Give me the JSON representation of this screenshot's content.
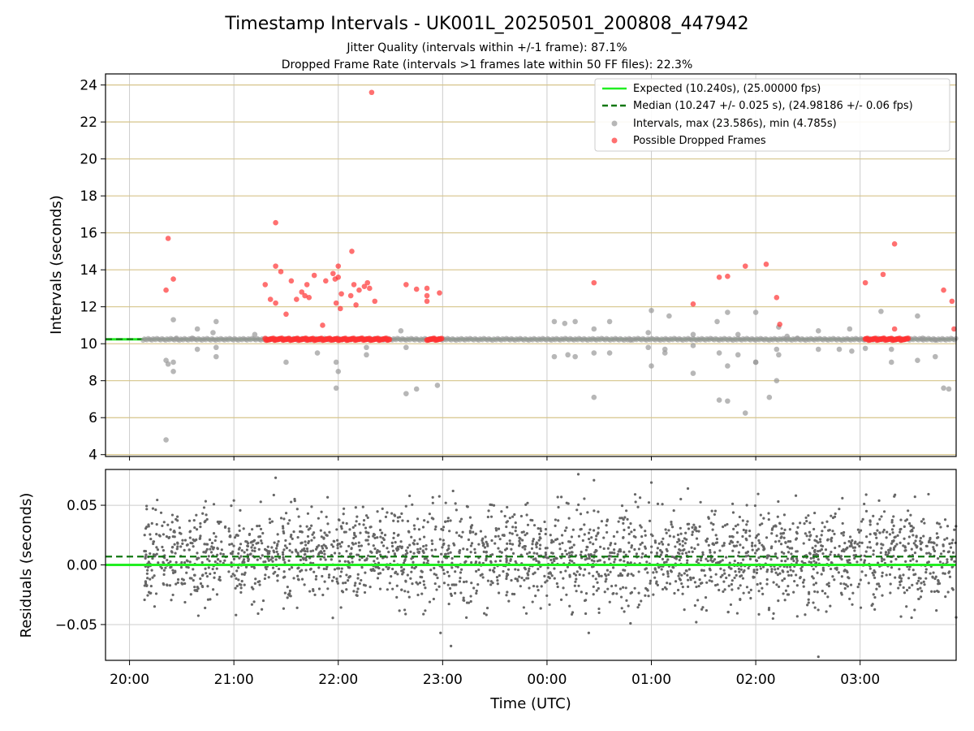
{
  "title": "Timestamp Intervals - UK001L_20250501_200808_447942",
  "subtitle_1": "Jitter Quality (intervals within +/-1 frame): 87.1%",
  "subtitle_2": "Dropped Frame Rate (intervals >1 frames late within 50 FF files): 22.3%",
  "colors": {
    "expected": "#22ee22",
    "median": "#117711",
    "intervals": "#999999",
    "dropped": "#ff3333",
    "residuals": "#666666",
    "hgrid_top": "#d6c48a",
    "grid": "#cccccc"
  },
  "chart_data": [
    {
      "type": "scatter",
      "panel": "intervals",
      "ylabel": "Intervals (seconds)",
      "ylim": [
        3.9,
        24.6
      ],
      "xlim_hours": [
        19.77,
        27.92
      ],
      "yticks": [
        4,
        6,
        8,
        10,
        12,
        14,
        16,
        18,
        20,
        22,
        24
      ],
      "grid": "horizontal (gold) and vertical",
      "legend_position": "top-right",
      "legend": [
        {
          "label": "Expected (10.240s), (25.00000 fps)",
          "style": "solid-line",
          "color": "#22ee22"
        },
        {
          "label": "Median (10.247 +/- 0.025 s), (24.98186 +/- 0.06 fps)",
          "style": "dashed-line",
          "color": "#117711"
        },
        {
          "label": "Intervals, max (23.586s), min (4.785s)",
          "style": "dot",
          "color": "#999999"
        },
        {
          "label": "Possible Dropped Frames",
          "style": "dot",
          "color": "#ff3333"
        }
      ],
      "expected_value": 10.24,
      "median_value": 10.247,
      "dense_band": {
        "x_start": 20.13,
        "x_end": 27.92,
        "y": 10.24
      },
      "dropped_band_segments": [
        [
          21.3,
          22.5
        ],
        [
          22.85,
          23.0
        ],
        [
          27.05,
          27.47
        ]
      ],
      "series": [
        {
          "name": "Intervals",
          "points": [
            [
              20.35,
              4.8
            ],
            [
              20.35,
              9.1
            ],
            [
              20.37,
              8.9
            ],
            [
              20.42,
              9.0
            ],
            [
              20.42,
              8.5
            ],
            [
              20.42,
              11.3
            ],
            [
              20.45,
              10.3
            ],
            [
              20.6,
              10.3
            ],
            [
              20.65,
              10.8
            ],
            [
              20.65,
              9.7
            ],
            [
              20.8,
              10.6
            ],
            [
              20.83,
              11.2
            ],
            [
              20.83,
              9.8
            ],
            [
              20.83,
              9.3
            ],
            [
              21.2,
              10.5
            ],
            [
              21.5,
              9.0
            ],
            [
              21.8,
              9.5
            ],
            [
              21.98,
              9.0
            ],
            [
              21.98,
              7.6
            ],
            [
              22.0,
              8.5
            ],
            [
              22.27,
              9.4
            ],
            [
              22.27,
              9.8
            ],
            [
              22.6,
              10.7
            ],
            [
              22.65,
              9.8
            ],
            [
              22.65,
              7.3
            ],
            [
              22.75,
              7.55
            ],
            [
              22.95,
              7.75
            ],
            [
              24.07,
              11.2
            ],
            [
              24.07,
              9.3
            ],
            [
              24.17,
              11.1
            ],
            [
              24.2,
              9.4
            ],
            [
              24.27,
              11.2
            ],
            [
              24.27,
              9.3
            ],
            [
              24.45,
              10.8
            ],
            [
              24.45,
              9.5
            ],
            [
              24.45,
              7.1
            ],
            [
              24.6,
              11.2
            ],
            [
              24.6,
              9.5
            ],
            [
              24.8,
              10.2
            ],
            [
              24.97,
              9.8
            ],
            [
              24.97,
              10.6
            ],
            [
              25.0,
              11.8
            ],
            [
              25.0,
              8.8
            ],
            [
              25.13,
              9.5
            ],
            [
              25.13,
              9.7
            ],
            [
              25.17,
              11.5
            ],
            [
              25.4,
              10.5
            ],
            [
              25.4,
              9.9
            ],
            [
              25.4,
              8.4
            ],
            [
              25.63,
              11.2
            ],
            [
              25.65,
              9.5
            ],
            [
              25.65,
              6.95
            ],
            [
              25.73,
              11.7
            ],
            [
              25.73,
              8.8
            ],
            [
              25.73,
              6.9
            ],
            [
              25.83,
              10.5
            ],
            [
              25.83,
              9.4
            ],
            [
              26.0,
              11.7
            ],
            [
              26.0,
              9.0
            ],
            [
              26.0,
              9.0
            ],
            [
              26.13,
              7.1
            ],
            [
              26.2,
              8.0
            ],
            [
              26.2,
              9.7
            ],
            [
              26.22,
              9.4
            ],
            [
              26.22,
              10.9
            ],
            [
              26.3,
              10.4
            ],
            [
              26.4,
              10.3
            ],
            [
              26.6,
              10.7
            ],
            [
              26.6,
              9.7
            ],
            [
              26.8,
              9.7
            ],
            [
              26.9,
              10.8
            ],
            [
              26.92,
              9.6
            ],
            [
              27.05,
              9.75
            ],
            [
              27.2,
              11.75
            ],
            [
              27.3,
              9.0
            ],
            [
              27.3,
              9.7
            ],
            [
              27.55,
              11.5
            ],
            [
              27.55,
              9.1
            ],
            [
              27.6,
              10.3
            ],
            [
              27.72,
              9.3
            ],
            [
              27.72,
              10.2
            ],
            [
              27.8,
              7.6
            ],
            [
              27.85,
              7.55
            ],
            [
              25.9,
              6.25
            ]
          ]
        },
        {
          "name": "Possible Dropped Frames",
          "points": [
            [
              20.35,
              12.9
            ],
            [
              20.37,
              15.7
            ],
            [
              20.42,
              13.5
            ],
            [
              21.3,
              13.2
            ],
            [
              21.35,
              12.4
            ],
            [
              21.4,
              14.2
            ],
            [
              21.4,
              12.2
            ],
            [
              21.4,
              16.55
            ],
            [
              21.45,
              13.9
            ],
            [
              21.5,
              11.6
            ],
            [
              21.55,
              13.4
            ],
            [
              21.6,
              12.4
            ],
            [
              21.65,
              12.8
            ],
            [
              21.68,
              12.6
            ],
            [
              21.7,
              13.2
            ],
            [
              21.72,
              12.5
            ],
            [
              21.77,
              13.7
            ],
            [
              21.85,
              11.0
            ],
            [
              21.88,
              13.4
            ],
            [
              21.95,
              13.8
            ],
            [
              21.97,
              13.5
            ],
            [
              21.98,
              12.2
            ],
            [
              22.0,
              14.2
            ],
            [
              22.0,
              13.6
            ],
            [
              22.02,
              11.9
            ],
            [
              22.03,
              12.7
            ],
            [
              22.12,
              12.6
            ],
            [
              22.13,
              15.0
            ],
            [
              22.15,
              13.2
            ],
            [
              22.17,
              12.1
            ],
            [
              22.2,
              12.9
            ],
            [
              22.25,
              13.1
            ],
            [
              22.28,
              13.3
            ],
            [
              22.3,
              13.0
            ],
            [
              22.32,
              23.6
            ],
            [
              22.35,
              12.3
            ],
            [
              22.65,
              13.2
            ],
            [
              22.75,
              12.95
            ],
            [
              22.85,
              12.3
            ],
            [
              22.85,
              12.6
            ],
            [
              22.85,
              13.0
            ],
            [
              22.97,
              12.75
            ],
            [
              24.45,
              13.3
            ],
            [
              25.4,
              12.15
            ],
            [
              25.65,
              13.6
            ],
            [
              25.73,
              13.65
            ],
            [
              25.9,
              14.2
            ],
            [
              26.1,
              14.3
            ],
            [
              26.2,
              12.5
            ],
            [
              26.23,
              11.05
            ],
            [
              27.05,
              13.3
            ],
            [
              27.22,
              13.75
            ],
            [
              27.33,
              15.4
            ],
            [
              27.33,
              10.8
            ],
            [
              27.8,
              12.9
            ],
            [
              27.88,
              12.3
            ],
            [
              27.9,
              10.8
            ]
          ]
        }
      ]
    },
    {
      "type": "scatter",
      "panel": "residuals",
      "xlabel": "Time (UTC)",
      "ylabel": "Residuals (seconds)",
      "ylim": [
        -0.08,
        0.08
      ],
      "xlim_hours": [
        19.77,
        27.92
      ],
      "xticks": [
        20,
        21,
        22,
        23,
        24,
        25,
        26,
        27
      ],
      "xtick_labels": [
        "20:00",
        "21:00",
        "22:00",
        "23:00",
        "00:00",
        "01:00",
        "02:00",
        "03:00"
      ],
      "yticks": [
        0.05,
        0.0,
        -0.05
      ],
      "ytick_labels": [
        "0.05",
        "0.00",
        "−0.05"
      ],
      "grid": "horizontal and vertical",
      "expected_value": 0.0,
      "median_value": 0.007,
      "series": [
        {
          "name": "Residuals",
          "distribution": {
            "x_start": 20.13,
            "x_end": 27.92,
            "count": 2600,
            "center": 0.007,
            "typical_spread": 0.02,
            "range": [
              -0.077,
              0.075
            ]
          },
          "outliers": [
            [
              21.4,
              0.073
            ],
            [
              23.1,
              0.062
            ],
            [
              23.08,
              -0.068
            ],
            [
              22.98,
              -0.057
            ],
            [
              24.3,
              0.076
            ],
            [
              24.45,
              0.071
            ],
            [
              24.4,
              -0.057
            ],
            [
              24.8,
              -0.049
            ],
            [
              25.0,
              0.069
            ],
            [
              25.35,
              0.064
            ],
            [
              26.6,
              -0.077
            ],
            [
              27.92,
              -0.044
            ],
            [
              21.0,
              0.054
            ],
            [
              21.02,
              -0.042
            ],
            [
              25.43,
              -0.048
            ]
          ]
        }
      ]
    }
  ]
}
